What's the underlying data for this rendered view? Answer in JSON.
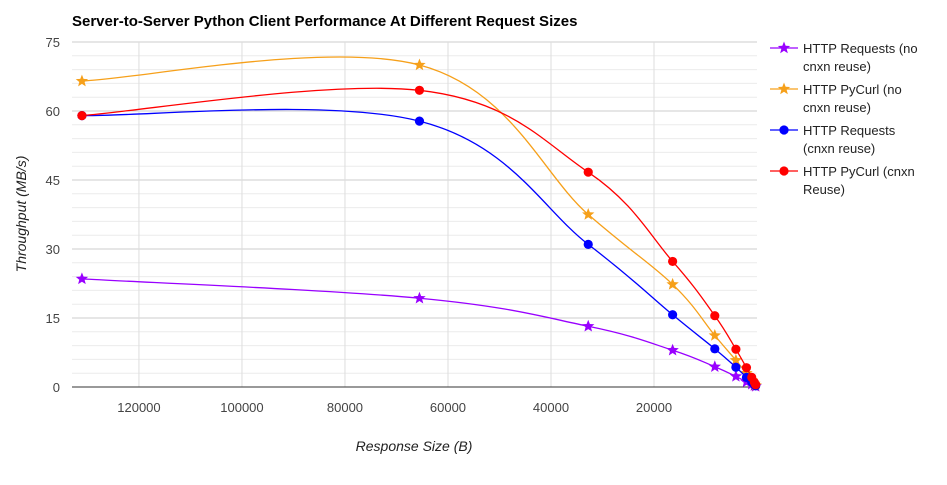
{
  "chart_data": {
    "type": "line",
    "title": "Server-to-Server Python Client Performance At Different Request Sizes",
    "xlabel": "Response Size (B)",
    "ylabel": "Throughput (MB/s)",
    "x_reversed": true,
    "xlim": [
      0,
      133000
    ],
    "ylim": [
      0,
      75
    ],
    "x_ticks": [
      120000,
      100000,
      80000,
      60000,
      40000,
      20000
    ],
    "x_tick_labels": [
      "120000",
      "100000",
      "80000",
      "60000",
      "40000",
      "20000"
    ],
    "y_ticks": [
      0,
      15,
      30,
      45,
      60,
      75
    ],
    "y_tick_labels": [
      "0",
      "15",
      "30",
      "45",
      "60",
      "75"
    ],
    "grid": true,
    "curve": "smooth",
    "legend_position": "right",
    "x": [
      131072,
      65536,
      32768,
      16384,
      8192,
      4096,
      2048,
      1024,
      512,
      256
    ],
    "series": [
      {
        "name": "HTTP Requests (no cnxn reuse)",
        "legend_lines": [
          "HTTP Requests (no",
          "cnxn reuse)"
        ],
        "color": "#9900ff",
        "marker": "star",
        "values": [
          23.5,
          19.3,
          13.2,
          8.0,
          4.4,
          2.3,
          1.1,
          0.6,
          0.3,
          0.15
        ]
      },
      {
        "name": "HTTP PyCurl (no cnxn reuse)",
        "legend_lines": [
          "HTTP PyCurl (no",
          "cnxn reuse)"
        ],
        "color": "#f6a01a",
        "marker": "star",
        "values": [
          66.5,
          70.0,
          37.5,
          22.3,
          11.2,
          5.8,
          3.0,
          1.5,
          0.7,
          0.35
        ]
      },
      {
        "name": "HTTP Requests (cnxn reuse)",
        "legend_lines": [
          "HTTP Requests",
          "(cnxn reuse)"
        ],
        "color": "#0000ff",
        "marker": "circle",
        "values": [
          59.0,
          57.8,
          31.0,
          15.7,
          8.3,
          4.3,
          2.1,
          1.1,
          0.5,
          0.25
        ]
      },
      {
        "name": "HTTP PyCurl (cnxn Reuse)",
        "legend_lines": [
          "HTTP PyCurl (cnxn",
          "Reuse)"
        ],
        "color": "#ff0000",
        "marker": "circle",
        "values": [
          59.0,
          64.5,
          46.7,
          27.3,
          15.5,
          8.2,
          4.2,
          2.1,
          1.0,
          0.5
        ]
      }
    ]
  }
}
